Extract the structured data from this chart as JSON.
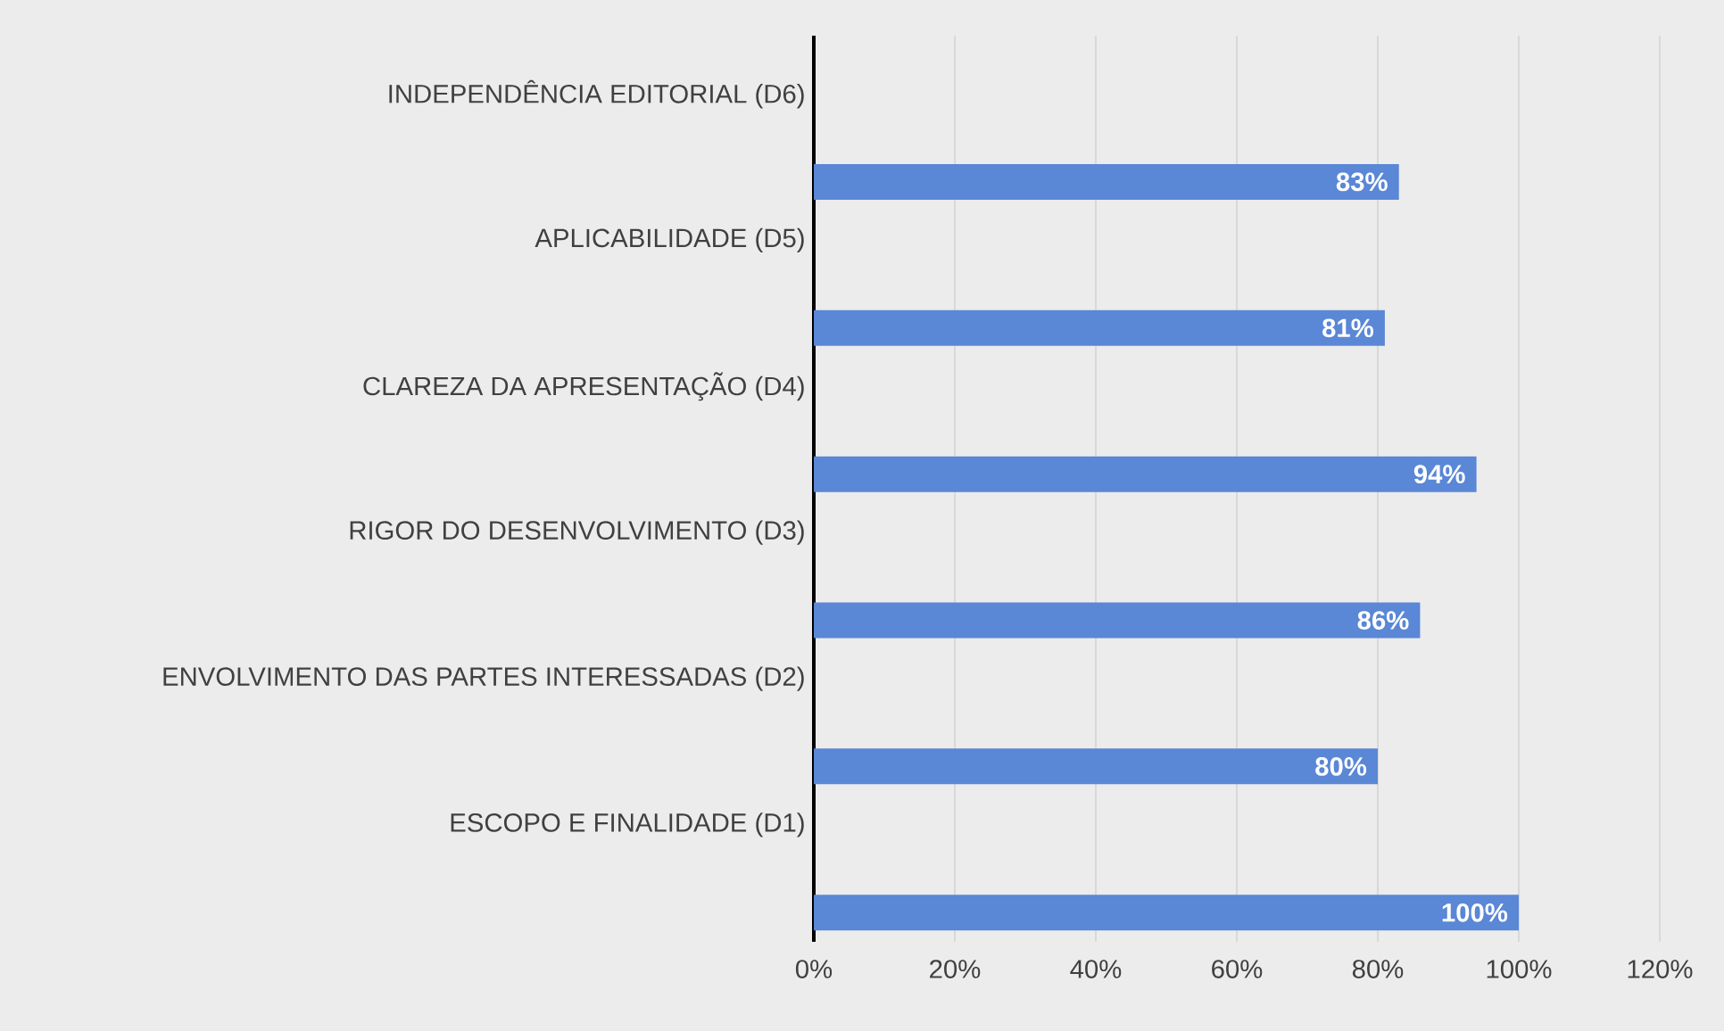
{
  "chart_data": {
    "type": "bar",
    "orientation": "horizontal",
    "categories": [
      "INDEPENDÊNCIA EDITORIAL (D6)",
      "APLICABILIDADE (D5)",
      "CLAREZA DA APRESENTAÇÃO (D4)",
      "RIGOR DO DESENVOLVIMENTO (D3)",
      "ENVOLVIMENTO DAS PARTES INTERESSADAS (D2)",
      "ESCOPO E FINALIDADE (D1)"
    ],
    "values": [
      83,
      81,
      94,
      86,
      80,
      100
    ],
    "value_labels": [
      "83%",
      "81%",
      "94%",
      "86%",
      "80%",
      "100%"
    ],
    "color": "#5a87d6",
    "xlim": [
      0,
      120
    ],
    "xticks": [
      {
        "value": 0,
        "label": "0%"
      },
      {
        "value": 20,
        "label": "20%"
      },
      {
        "value": 40,
        "label": "40%"
      },
      {
        "value": 60,
        "label": "60%"
      },
      {
        "value": 80,
        "label": "80%"
      },
      {
        "value": 100,
        "label": "100%"
      },
      {
        "value": 120,
        "label": "120%"
      }
    ],
    "grid": "x"
  }
}
